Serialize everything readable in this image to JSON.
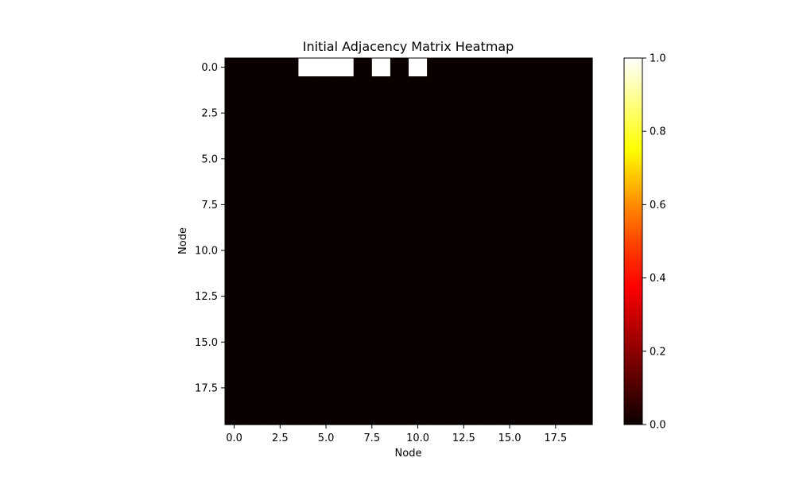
{
  "chart_data": {
    "type": "heatmap",
    "title": "Initial Adjacency Matrix Heatmap",
    "xlabel": "Node",
    "ylabel": "Node",
    "rows": 20,
    "cols": 20,
    "nonzero_cells": [
      {
        "row": 0,
        "col": 4,
        "value": 1
      },
      {
        "row": 0,
        "col": 5,
        "value": 1
      },
      {
        "row": 0,
        "col": 6,
        "value": 1
      },
      {
        "row": 0,
        "col": 8,
        "value": 1
      },
      {
        "row": 0,
        "col": 10,
        "value": 1
      }
    ],
    "default_value": 0,
    "x_ticks": [
      0,
      2.5,
      5,
      7.5,
      10,
      12.5,
      15,
      17.5
    ],
    "x_tick_labels": [
      "0.0",
      "2.5",
      "5.0",
      "7.5",
      "10.0",
      "12.5",
      "15.0",
      "17.5"
    ],
    "y_ticks": [
      0,
      2.5,
      5,
      7.5,
      10,
      12.5,
      15,
      17.5
    ],
    "y_tick_labels": [
      "0.0",
      "2.5",
      "5.0",
      "7.5",
      "10.0",
      "12.5",
      "15.0",
      "17.5"
    ],
    "xlim": [
      -0.5,
      19.5
    ],
    "ylim": [
      19.5,
      -0.5
    ],
    "colormap": "hot",
    "colorbar": {
      "vmin": 0,
      "vmax": 1,
      "ticks": [
        0,
        0.2,
        0.4,
        0.6,
        0.8,
        1
      ],
      "tick_labels": [
        "0.0",
        "0.2",
        "0.4",
        "0.6",
        "0.8",
        "1.0"
      ]
    },
    "grid": false
  }
}
